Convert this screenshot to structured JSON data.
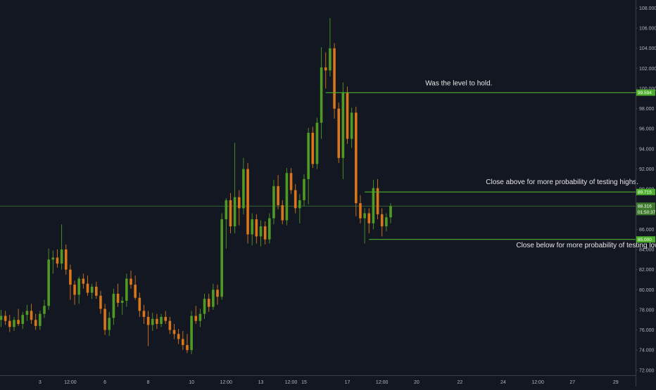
{
  "chart_data": {
    "type": "candlestick",
    "title": "",
    "xlabel": "",
    "ylabel": "",
    "ylim": [
      71.5,
      108.8
    ],
    "y_ticks": [
      72,
      74,
      76,
      78,
      80,
      82,
      84,
      86,
      88,
      90,
      92,
      94,
      96,
      98,
      100,
      102,
      104,
      106,
      108
    ],
    "y_tick_labels": [
      "72.000",
      "74.000",
      "76.000",
      "78.000",
      "80.000",
      "82.000",
      "84.000",
      "86.000",
      "88.000",
      "90.000",
      "92.000",
      "94.000",
      "96.000",
      "98.000",
      "100.000",
      "102.000",
      "104.000",
      "106.000",
      "108.000"
    ],
    "x_ticks": [
      {
        "i": 9,
        "label": "3"
      },
      {
        "i": 16,
        "label": "12:00"
      },
      {
        "i": 24,
        "label": "6"
      },
      {
        "i": 34,
        "label": "8"
      },
      {
        "i": 44,
        "label": "10"
      },
      {
        "i": 52,
        "label": "12:00"
      },
      {
        "i": 60,
        "label": "13"
      },
      {
        "i": 67,
        "label": "12:00"
      },
      {
        "i": 70,
        "label": "15"
      },
      {
        "i": 80,
        "label": "17"
      },
      {
        "i": 88,
        "label": "12:00"
      },
      {
        "i": 96,
        "label": "20"
      },
      {
        "i": 106,
        "label": "22"
      },
      {
        "i": 116,
        "label": "24"
      },
      {
        "i": 124,
        "label": "12:00"
      },
      {
        "i": 132,
        "label": "27"
      },
      {
        "i": 142,
        "label": "29"
      }
    ],
    "grid": false,
    "colors": {
      "background": "#131722",
      "up": "#4e9a22",
      "down": "#d9751a",
      "text": "#b2b5be",
      "level_line": "#4caf2a",
      "price_line": "#3e7a2c",
      "axis_border": "#3a3e4a"
    },
    "candles": [
      {
        "o": 77.0,
        "h": 78.0,
        "l": 76.3,
        "c": 77.4
      },
      {
        "o": 77.4,
        "h": 77.9,
        "l": 76.5,
        "c": 76.9
      },
      {
        "o": 76.9,
        "h": 77.5,
        "l": 75.8,
        "c": 76.3
      },
      {
        "o": 76.3,
        "h": 77.3,
        "l": 75.9,
        "c": 77.0
      },
      {
        "o": 77.0,
        "h": 78.1,
        "l": 76.4,
        "c": 76.6
      },
      {
        "o": 76.6,
        "h": 77.8,
        "l": 76.1,
        "c": 77.5
      },
      {
        "o": 77.5,
        "h": 78.5,
        "l": 76.9,
        "c": 77.9
      },
      {
        "o": 77.9,
        "h": 78.6,
        "l": 76.6,
        "c": 77.0
      },
      {
        "o": 77.0,
        "h": 77.6,
        "l": 76.0,
        "c": 76.4
      },
      {
        "o": 76.4,
        "h": 77.9,
        "l": 76.0,
        "c": 77.6
      },
      {
        "o": 77.6,
        "h": 79.0,
        "l": 77.2,
        "c": 78.4
      },
      {
        "o": 78.4,
        "h": 84.1,
        "l": 78.0,
        "c": 83.0
      },
      {
        "o": 83.0,
        "h": 83.9,
        "l": 81.6,
        "c": 83.2
      },
      {
        "o": 83.2,
        "h": 84.0,
        "l": 82.2,
        "c": 82.6
      },
      {
        "o": 82.6,
        "h": 86.5,
        "l": 82.0,
        "c": 84.0
      },
      {
        "o": 84.0,
        "h": 84.5,
        "l": 81.5,
        "c": 82.0
      },
      {
        "o": 82.0,
        "h": 82.5,
        "l": 79.0,
        "c": 80.5
      },
      {
        "o": 80.5,
        "h": 80.9,
        "l": 78.5,
        "c": 79.5
      },
      {
        "o": 79.5,
        "h": 81.3,
        "l": 78.6,
        "c": 81.1
      },
      {
        "o": 81.1,
        "h": 81.6,
        "l": 80.1,
        "c": 80.6
      },
      {
        "o": 80.6,
        "h": 81.4,
        "l": 79.4,
        "c": 79.7
      },
      {
        "o": 79.7,
        "h": 80.6,
        "l": 79.1,
        "c": 80.3
      },
      {
        "o": 80.3,
        "h": 80.8,
        "l": 79.1,
        "c": 79.4
      },
      {
        "o": 79.4,
        "h": 79.9,
        "l": 77.6,
        "c": 78.1
      },
      {
        "o": 78.1,
        "h": 78.6,
        "l": 75.5,
        "c": 76.0
      },
      {
        "o": 76.0,
        "h": 77.8,
        "l": 75.4,
        "c": 77.2
      },
      {
        "o": 77.2,
        "h": 80.1,
        "l": 76.5,
        "c": 79.6
      },
      {
        "o": 79.6,
        "h": 80.6,
        "l": 78.3,
        "c": 78.7
      },
      {
        "o": 78.7,
        "h": 79.3,
        "l": 77.5,
        "c": 78.9
      },
      {
        "o": 78.9,
        "h": 81.6,
        "l": 78.3,
        "c": 81.1
      },
      {
        "o": 81.1,
        "h": 81.9,
        "l": 80.1,
        "c": 80.5
      },
      {
        "o": 80.5,
        "h": 81.4,
        "l": 79.0,
        "c": 79.2
      },
      {
        "o": 79.2,
        "h": 79.7,
        "l": 77.3,
        "c": 77.9
      },
      {
        "o": 77.9,
        "h": 78.5,
        "l": 76.6,
        "c": 77.3
      },
      {
        "o": 77.3,
        "h": 77.9,
        "l": 74.4,
        "c": 76.5
      },
      {
        "o": 76.5,
        "h": 77.7,
        "l": 75.9,
        "c": 77.1
      },
      {
        "o": 77.1,
        "h": 77.6,
        "l": 76.1,
        "c": 76.6
      },
      {
        "o": 76.6,
        "h": 77.6,
        "l": 76.3,
        "c": 77.3
      },
      {
        "o": 77.3,
        "h": 77.9,
        "l": 76.6,
        "c": 76.9
      },
      {
        "o": 76.9,
        "h": 77.3,
        "l": 75.6,
        "c": 76.0
      },
      {
        "o": 76.0,
        "h": 76.6,
        "l": 75.1,
        "c": 75.6
      },
      {
        "o": 75.6,
        "h": 76.1,
        "l": 74.6,
        "c": 75.1
      },
      {
        "o": 75.1,
        "h": 75.9,
        "l": 74.0,
        "c": 74.5
      },
      {
        "o": 74.5,
        "h": 75.6,
        "l": 73.7,
        "c": 74.0
      },
      {
        "o": 74.0,
        "h": 77.9,
        "l": 73.6,
        "c": 77.4
      },
      {
        "o": 77.4,
        "h": 78.4,
        "l": 76.6,
        "c": 76.9
      },
      {
        "o": 76.9,
        "h": 78.1,
        "l": 76.3,
        "c": 77.6
      },
      {
        "o": 77.6,
        "h": 79.6,
        "l": 77.1,
        "c": 79.1
      },
      {
        "o": 79.1,
        "h": 79.6,
        "l": 77.8,
        "c": 78.3
      },
      {
        "o": 78.3,
        "h": 80.6,
        "l": 78.0,
        "c": 80.0
      },
      {
        "o": 80.0,
        "h": 80.5,
        "l": 78.5,
        "c": 79.3
      },
      {
        "o": 79.3,
        "h": 87.6,
        "l": 79.0,
        "c": 87.0
      },
      {
        "o": 87.0,
        "h": 89.1,
        "l": 84.1,
        "c": 88.9
      },
      {
        "o": 88.9,
        "h": 89.6,
        "l": 85.6,
        "c": 86.3
      },
      {
        "o": 86.3,
        "h": 94.6,
        "l": 85.6,
        "c": 89.2
      },
      {
        "o": 89.2,
        "h": 89.9,
        "l": 86.4,
        "c": 88.1
      },
      {
        "o": 88.1,
        "h": 93.1,
        "l": 87.5,
        "c": 92.0
      },
      {
        "o": 92.0,
        "h": 92.6,
        "l": 84.6,
        "c": 85.5
      },
      {
        "o": 85.5,
        "h": 87.6,
        "l": 84.4,
        "c": 87.0
      },
      {
        "o": 87.0,
        "h": 87.5,
        "l": 84.6,
        "c": 85.3
      },
      {
        "o": 85.3,
        "h": 86.9,
        "l": 84.3,
        "c": 86.3
      },
      {
        "o": 86.3,
        "h": 86.8,
        "l": 84.5,
        "c": 85.0
      },
      {
        "o": 85.0,
        "h": 87.6,
        "l": 84.6,
        "c": 87.1
      },
      {
        "o": 87.1,
        "h": 90.9,
        "l": 86.5,
        "c": 90.3
      },
      {
        "o": 90.3,
        "h": 91.4,
        "l": 88.0,
        "c": 88.4
      },
      {
        "o": 88.4,
        "h": 88.9,
        "l": 86.5,
        "c": 86.9
      },
      {
        "o": 86.9,
        "h": 92.1,
        "l": 86.4,
        "c": 91.6
      },
      {
        "o": 91.6,
        "h": 92.1,
        "l": 89.5,
        "c": 89.9
      },
      {
        "o": 89.9,
        "h": 90.5,
        "l": 87.6,
        "c": 88.1
      },
      {
        "o": 88.1,
        "h": 89.5,
        "l": 86.6,
        "c": 88.9
      },
      {
        "o": 88.9,
        "h": 91.5,
        "l": 88.3,
        "c": 91.0
      },
      {
        "o": 91.0,
        "h": 96.1,
        "l": 88.5,
        "c": 95.6
      },
      {
        "o": 95.6,
        "h": 96.2,
        "l": 92.1,
        "c": 92.5
      },
      {
        "o": 92.5,
        "h": 97.1,
        "l": 92.0,
        "c": 96.6
      },
      {
        "o": 96.6,
        "h": 104.1,
        "l": 95.0,
        "c": 102.1
      },
      {
        "o": 102.1,
        "h": 103.6,
        "l": 100.0,
        "c": 101.8
      },
      {
        "o": 101.8,
        "h": 107.0,
        "l": 101.2,
        "c": 104.0
      },
      {
        "o": 104.0,
        "h": 104.5,
        "l": 97.0,
        "c": 98.0
      },
      {
        "o": 98.0,
        "h": 98.6,
        "l": 92.6,
        "c": 93.1
      },
      {
        "o": 93.1,
        "h": 100.6,
        "l": 91.0,
        "c": 99.6
      },
      {
        "o": 99.6,
        "h": 100.2,
        "l": 94.5,
        "c": 95.0
      },
      {
        "o": 95.0,
        "h": 98.1,
        "l": 94.1,
        "c": 97.6
      },
      {
        "o": 97.6,
        "h": 98.2,
        "l": 87.3,
        "c": 88.6
      },
      {
        "o": 88.6,
        "h": 89.4,
        "l": 86.6,
        "c": 87.1
      },
      {
        "o": 87.1,
        "h": 88.1,
        "l": 84.6,
        "c": 87.6
      },
      {
        "o": 87.6,
        "h": 88.1,
        "l": 85.6,
        "c": 86.6
      },
      {
        "o": 86.6,
        "h": 90.9,
        "l": 86.0,
        "c": 90.1
      },
      {
        "o": 90.1,
        "h": 91.0,
        "l": 87.0,
        "c": 87.5
      },
      {
        "o": 87.5,
        "h": 88.1,
        "l": 85.3,
        "c": 86.3
      },
      {
        "o": 86.3,
        "h": 87.6,
        "l": 85.8,
        "c": 87.2
      },
      {
        "o": 87.2,
        "h": 88.6,
        "l": 86.6,
        "c": 88.3
      }
    ],
    "price_line": 88.316,
    "levels": [
      {
        "value": 99.594,
        "label": "99.594",
        "from_i": 75
      },
      {
        "value": 89.715,
        "label": "89.715",
        "from_i": 84
      },
      {
        "value": 85.0,
        "label": "85.000",
        "from_i": 85
      }
    ],
    "last_price_tag": {
      "value": "88.316",
      "countdown": "01:50:37"
    },
    "annotations": [
      {
        "text": "Was the level to hold.",
        "x_i": 98,
        "y": 100.3
      },
      {
        "text": "Close above for more probability of testing highs.",
        "x_i": 112,
        "y": 90.5
      },
      {
        "text": "Close below for more probability of testing lows.",
        "x_i": 119,
        "y": 84.2
      }
    ]
  }
}
